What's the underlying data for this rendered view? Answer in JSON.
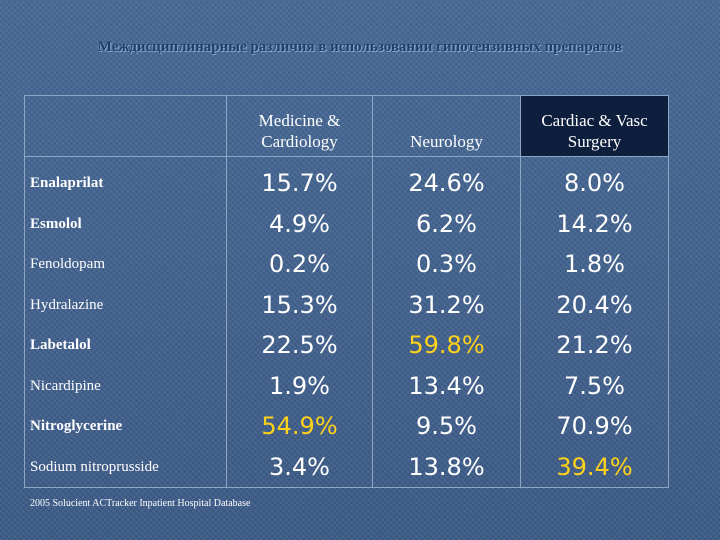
{
  "title": "Междисциплинарные различия в использовании гипотензивных препаратов",
  "columns": [
    {
      "line1": "Medicine &",
      "line2": "Cardiology"
    },
    {
      "line1": "",
      "line2": "Neurology"
    },
    {
      "line1": "Cardiac & Vasc",
      "line2": "Surgery"
    }
  ],
  "rows": [
    {
      "drug": "Enalaprilat",
      "bold": true,
      "values": [
        "15.7%",
        "24.6%",
        "8.0%"
      ],
      "highlight": [
        false,
        false,
        false
      ]
    },
    {
      "drug": "Esmolol",
      "bold": true,
      "values": [
        "4.9%",
        "6.2%",
        "14.2%"
      ],
      "highlight": [
        false,
        false,
        false
      ]
    },
    {
      "drug": "Fenoldopam",
      "bold": false,
      "values": [
        "0.2%",
        "0.3%",
        "1.8%"
      ],
      "highlight": [
        false,
        false,
        false
      ]
    },
    {
      "drug": "Hydralazine",
      "bold": false,
      "values": [
        "15.3%",
        "31.2%",
        "20.4%"
      ],
      "highlight": [
        false,
        false,
        false
      ]
    },
    {
      "drug": "Labetalol",
      "bold": true,
      "values": [
        "22.5%",
        "59.8%",
        "21.2%"
      ],
      "highlight": [
        false,
        true,
        false
      ]
    },
    {
      "drug": "Nicardipine",
      "bold": false,
      "values": [
        "1.9%",
        "13.4%",
        "7.5%"
      ],
      "highlight": [
        false,
        false,
        false
      ]
    },
    {
      "drug": "Nitroglycerine",
      "bold": true,
      "values": [
        "54.9%",
        "9.5%",
        "70.9%"
      ],
      "highlight": [
        true,
        false,
        false
      ]
    },
    {
      "drug": "Sodium nitroprusside",
      "bold": false,
      "values": [
        "3.4%",
        "13.8%",
        "39.4%"
      ],
      "highlight": [
        false,
        false,
        true
      ]
    }
  ],
  "footer": "2005 Solucient ACTracker Inpatient Hospital Database",
  "colors": {
    "highlight": "#ffd21a",
    "header_dark": "#0e1f3d",
    "title": "#1f3e6e"
  }
}
